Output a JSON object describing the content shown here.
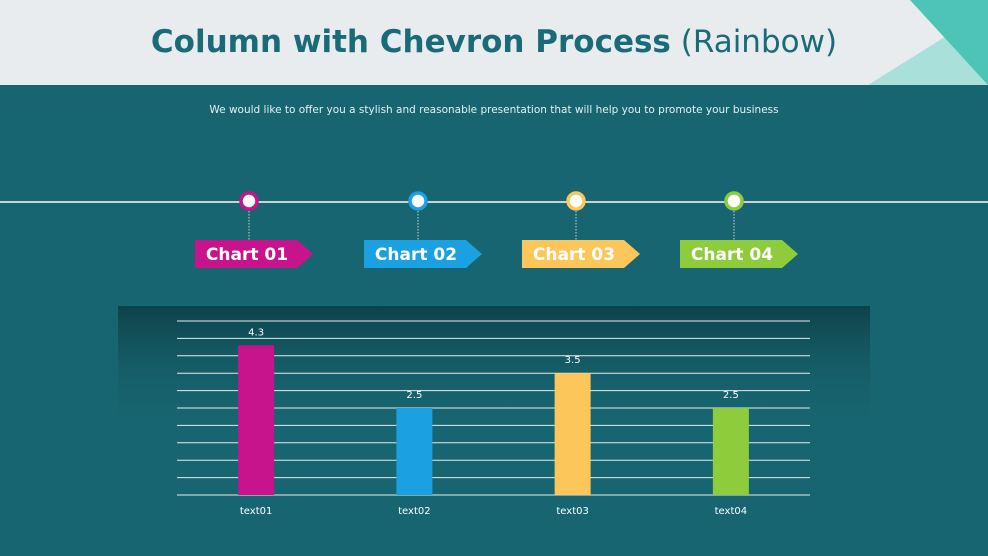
{
  "header": {
    "title": "Column with Chevron Process",
    "title_suffix": "(Rainbow)",
    "subtitle": "We would like to offer you a stylish and reasonable presentation that will help you to promote your business"
  },
  "steps": [
    {
      "label": "Chart 01",
      "color": "#c8148c"
    },
    {
      "label": "Chart 02",
      "color": "#1ba1e2"
    },
    {
      "label": "Chart 03",
      "color": "#fdc65a"
    },
    {
      "label": "Chart 04",
      "color": "#8fcc3c"
    }
  ],
  "chart_data": {
    "type": "bar",
    "categories": [
      "text01",
      "text02",
      "text03",
      "text04"
    ],
    "values": [
      4.3,
      2.5,
      3.5,
      2.5
    ],
    "colors": [
      "#c8148c",
      "#1ba1e2",
      "#fdc65a",
      "#8fcc3c"
    ],
    "ylim": [
      0,
      5
    ],
    "yticks": [
      0,
      0.5,
      1,
      1.5,
      2,
      2.5,
      3,
      3.5,
      4,
      4.5,
      5
    ],
    "grid": true
  }
}
